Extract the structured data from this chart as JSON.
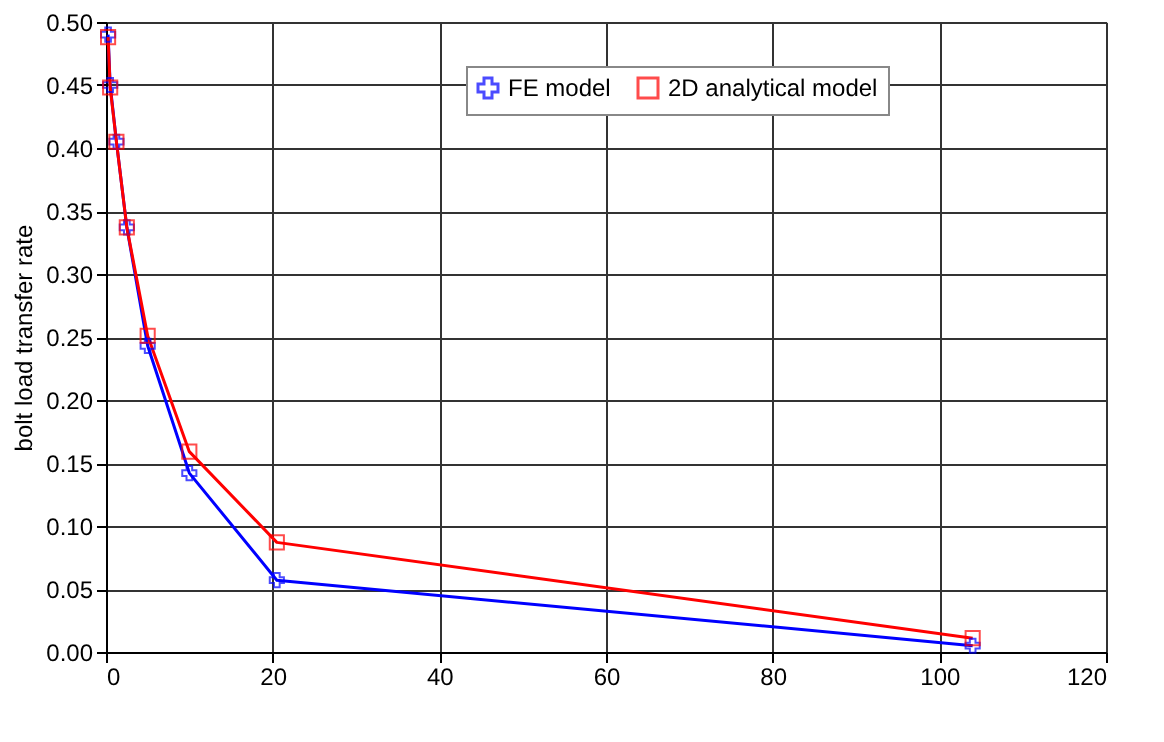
{
  "chart_data": {
    "type": "line",
    "ylabel": "bolt load transfer rate",
    "xlim": [
      0,
      120
    ],
    "xticks": [
      0,
      20,
      40,
      60,
      80,
      100,
      120
    ],
    "ylim": [
      0,
      0.5
    ],
    "yticks": [
      {
        "value": 0,
        "label": "0.00"
      },
      0.05,
      {
        "value": 0.1,
        "label": "0.10"
      },
      0.15,
      {
        "value": 0.2,
        "label": "0.20"
      },
      0.25,
      {
        "value": 0.3,
        "label": "0.30"
      },
      0.35,
      {
        "value": 0.4,
        "label": "0.40"
      },
      0.45,
      {
        "value": 0.5,
        "label": "0.50"
      }
    ],
    "grid": true,
    "legend": "top",
    "line_style": "solid",
    "series": [
      {
        "name": "FE model",
        "color": "#0000ff",
        "marker": "cross",
        "x": [
          0.25,
          0.5,
          1.25,
          2.5,
          5,
          10,
          20.5,
          104
        ],
        "values": [
          0.49,
          0.45,
          0.405,
          0.337,
          0.243,
          0.142,
          0.057,
          0.005
        ]
      },
      {
        "name": "2D analytical model",
        "color": "#ff0000",
        "marker": "square",
        "x": [
          0.25,
          0.5,
          1.25,
          2.5,
          5,
          10,
          20.5,
          104
        ],
        "values": [
          0.488,
          0.448,
          0.405,
          0.337,
          0.251,
          0.159,
          0.087,
          0.011
        ]
      }
    ]
  }
}
